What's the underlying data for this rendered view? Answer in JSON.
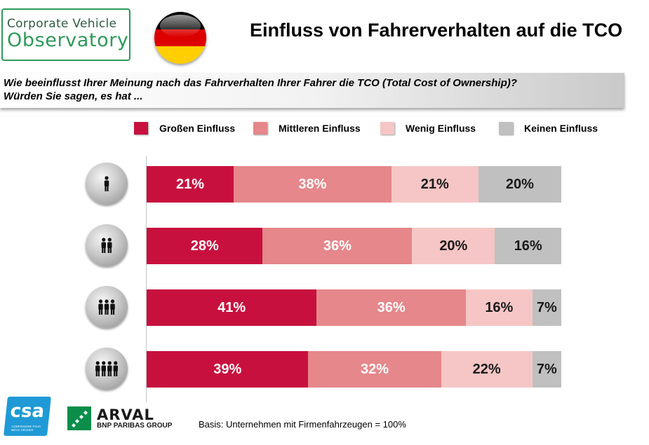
{
  "header": {
    "logo": {
      "line1": "Corporate Vehicle",
      "line2": "Observatory"
    },
    "flag": {
      "colors": [
        "#000000",
        "#dd0000",
        "#ffce00"
      ]
    },
    "title": "Einfluss von Fahrerverhalten auf die TCO"
  },
  "question": {
    "line1": "Wie beeinflusst  Ihrer Meinung nach das Fahrverhalten Ihrer Fahrer die TCO (Total Cost of Ownership)?",
    "line2": "Würden Sie sagen,  es hat ..."
  },
  "chart_data": {
    "type": "bar",
    "orientation": "horizontal",
    "stacked": true,
    "categories": [
      "1 person icon",
      "2 persons icon",
      "3 persons icon",
      "4 persons icon"
    ],
    "series": [
      {
        "name": "Großen Einfluss",
        "color": "#c8103e",
        "values": [
          21,
          28,
          41,
          39
        ],
        "labels": [
          "21%",
          "28%",
          "41%",
          "39%"
        ]
      },
      {
        "name": "Mittleren Einfluss",
        "color": "#e5878b",
        "values": [
          38,
          36,
          36,
          32
        ],
        "labels": [
          "38%",
          "36%",
          "36%",
          "32%"
        ]
      },
      {
        "name": "Wenig Einfluss",
        "color": "#f5c6c5",
        "values": [
          21,
          20,
          16,
          22
        ],
        "labels": [
          "21%",
          "20%",
          "16%",
          "22%"
        ]
      },
      {
        "name": "Keinen Einfluss",
        "color": "#c0c0c0",
        "values": [
          20,
          16,
          7,
          7
        ],
        "labels": [
          "20%",
          "16%",
          "7%",
          "7%"
        ]
      }
    ],
    "xlim": [
      0,
      100
    ],
    "unit": "%",
    "legend": "top",
    "grid": false,
    "label_colors": [
      "#ffffff",
      "#ffffff",
      "#1a1a1a",
      "#1a1a1a"
    ]
  },
  "footer": {
    "basis": "Basis: Unternehmen mit Firmenfahrzeugen = 100%",
    "csa": {
      "name": "csa",
      "tagline": "COMPRENDRE POUR MIEUX DÉCIDER"
    },
    "arval": {
      "name": "ARVAL",
      "group": "BNP PARIBAS GROUP"
    }
  }
}
